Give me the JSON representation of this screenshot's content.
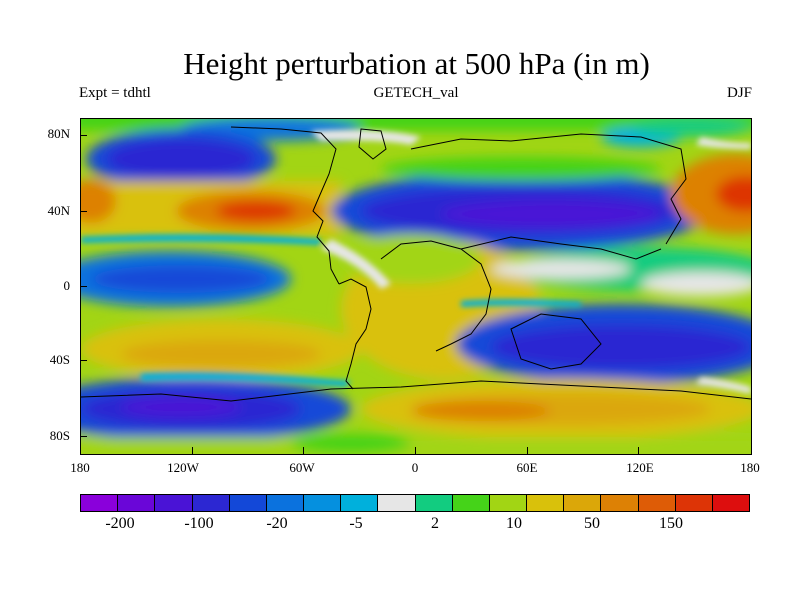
{
  "title": "Height perturbation at 500 hPa (in m)",
  "left_label": "Expt = tdhtl",
  "center_label": "GETECH_val",
  "right_label": "DJF",
  "lat_labels": [
    "80N",
    "40N",
    "0",
    "40S",
    "80S"
  ],
  "lon_labels": [
    "180",
    "120W",
    "60W",
    "0",
    "60E",
    "120E",
    "180"
  ],
  "colorbar": {
    "colors": [
      "#8a00db",
      "#6a06d8",
      "#4a13d6",
      "#2c27d2",
      "#1348d8",
      "#0b72de",
      "#0590df",
      "#00b0dc",
      "#e6e6e6",
      "#12cc80",
      "#45d319",
      "#a2d514",
      "#d9c10b",
      "#dba709",
      "#dd8105",
      "#de5c06",
      "#dd3406",
      "#dd0e0e"
    ],
    "labels": [
      "-200",
      "-100",
      "-20",
      "-5",
      "2",
      "10",
      "50",
      "150"
    ]
  }
}
